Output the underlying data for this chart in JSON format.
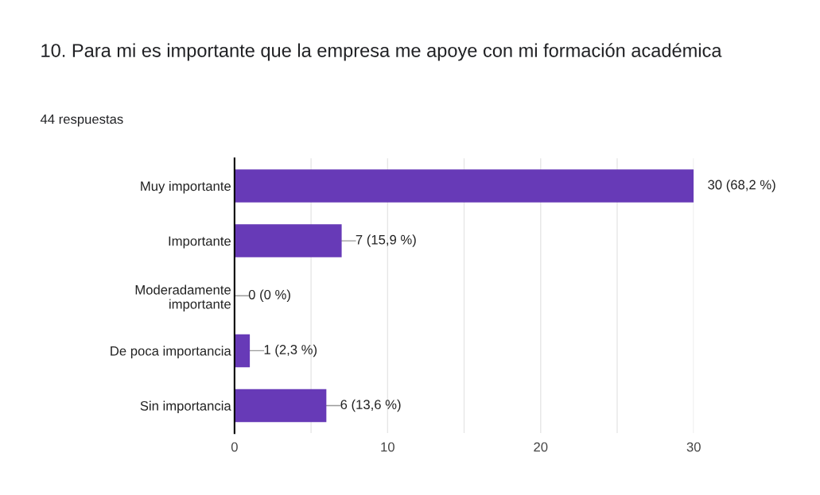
{
  "chart_data": {
    "type": "bar",
    "orientation": "horizontal",
    "title": "10. Para mi es importante que la empresa me apoye con mi formación académica",
    "subtitle": "44 respuestas",
    "categories": [
      "Muy importante",
      "Importante",
      "Moderadamente importante",
      "De poca importancia",
      "Sin importancia"
    ],
    "values": [
      30,
      7,
      0,
      1,
      6
    ],
    "value_labels": [
      "30 (68,2 %)",
      "7 (15,9 %)",
      "0 (0 %)",
      "1 (2,3 %)",
      "6 (13,6 %)"
    ],
    "color": "#673ab7",
    "xlim": [
      0,
      30
    ],
    "xticks": [
      0,
      {
        "value": 5,
        "label": null
      },
      10,
      {
        "value": 15,
        "label": null
      },
      20,
      {
        "value": 25,
        "label": null
      },
      30
    ],
    "grid": "x",
    "legend": false
  }
}
